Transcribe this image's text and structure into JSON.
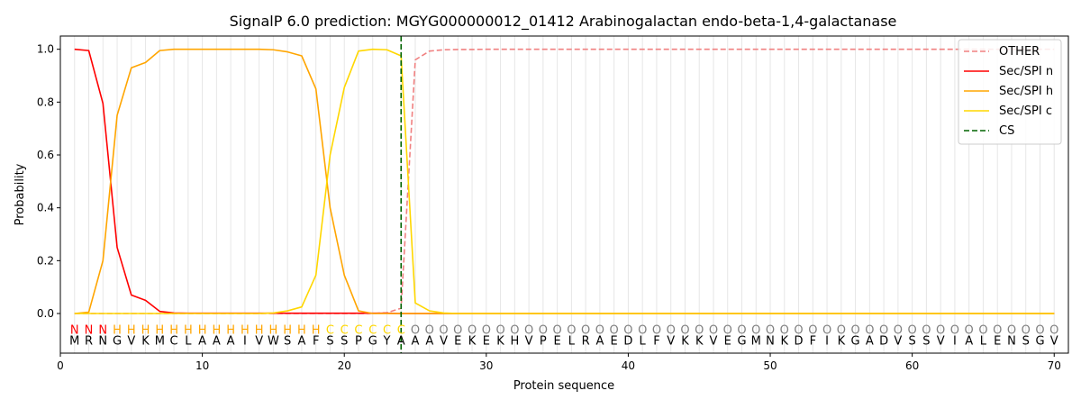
{
  "chart_data": {
    "type": "line",
    "title": "SignalP 6.0 prediction: MGYG000000012_01412 Arabinogalactan endo-beta-1,4-galactanase",
    "xlabel": "Protein sequence",
    "ylabel": "Probability",
    "xlim": [
      0,
      71
    ],
    "ylim": [
      -0.15,
      1.05
    ],
    "x_ticks": [
      0,
      10,
      20,
      30,
      40,
      50,
      60,
      70
    ],
    "y_ticks": [
      0.0,
      0.2,
      0.4,
      0.6,
      0.8,
      1.0
    ],
    "x_tick_labels": [
      "0",
      "10",
      "20",
      "30",
      "40",
      "50",
      "60",
      "70"
    ],
    "y_tick_labels": [
      "0.0",
      "0.2",
      "0.4",
      "0.6",
      "0.8",
      "1.0"
    ],
    "grid": "vertical lines at each residue",
    "legend_position": "top-right",
    "sequence": [
      "M",
      "R",
      "N",
      "G",
      "V",
      "K",
      "M",
      "C",
      "L",
      "A",
      "A",
      "A",
      "I",
      "V",
      "W",
      "S",
      "A",
      "F",
      "S",
      "S",
      "P",
      "G",
      "Y",
      "A",
      "A",
      "A",
      "V",
      "E",
      "K",
      "E",
      "K",
      "H",
      "V",
      "P",
      "E",
      "L",
      "R",
      "A",
      "E",
      "D",
      "L",
      "F",
      "V",
      "K",
      "K",
      "V",
      "E",
      "G",
      "M",
      "N",
      "K",
      "D",
      "F",
      "I",
      "K",
      "G",
      "A",
      "D",
      "V",
      "S",
      "S",
      "V",
      "I",
      "A",
      "L",
      "E",
      "N",
      "S",
      "G",
      "V"
    ],
    "labels": [
      "N",
      "N",
      "N",
      "H",
      "H",
      "H",
      "H",
      "H",
      "H",
      "H",
      "H",
      "H",
      "H",
      "H",
      "H",
      "H",
      "H",
      "H",
      "C",
      "C",
      "C",
      "C",
      "C",
      "C",
      "O",
      "O",
      "O",
      "O",
      "O",
      "O",
      "O",
      "O",
      "O",
      "O",
      "O",
      "O",
      "O",
      "O",
      "O",
      "O",
      "O",
      "O",
      "O",
      "O",
      "O",
      "O",
      "O",
      "O",
      "O",
      "O",
      "O",
      "O",
      "O",
      "O",
      "O",
      "O",
      "O",
      "O",
      "O",
      "O",
      "O",
      "O",
      "O",
      "O",
      "O",
      "O",
      "O",
      "O",
      "O",
      "O"
    ],
    "label_colors": {
      "N": "#ff0000",
      "H": "#ffa500",
      "C": "#ffd700",
      "O": "#808080"
    },
    "cleavage_site": 24,
    "series": [
      {
        "name": "OTHER",
        "color": "#f08080",
        "dash": true,
        "values": [
          0.0,
          0.0,
          0.0,
          0.0,
          0.0,
          0.0,
          0.0,
          0.0,
          0.0,
          0.0,
          0.0,
          0.0,
          0.0,
          0.0,
          0.0,
          0.0,
          0.0,
          0.0,
          0.0,
          0.0,
          0.0,
          0.0,
          0.003,
          0.02,
          0.96,
          0.993,
          0.998,
          0.999,
          0.999,
          1.0,
          1.0,
          1.0,
          1.0,
          1.0,
          1.0,
          1.0,
          1.0,
          1.0,
          1.0,
          1.0,
          1.0,
          1.0,
          1.0,
          1.0,
          1.0,
          1.0,
          1.0,
          1.0,
          1.0,
          1.0,
          1.0,
          1.0,
          1.0,
          1.0,
          1.0,
          1.0,
          1.0,
          1.0,
          1.0,
          1.0,
          1.0,
          1.0,
          1.0,
          1.0,
          1.0,
          1.0,
          1.0,
          1.0,
          1.0,
          1.0
        ]
      },
      {
        "name": "Sec/SPI n",
        "color": "#ff0000",
        "dash": false,
        "values": [
          1.0,
          0.995,
          0.795,
          0.25,
          0.07,
          0.05,
          0.008,
          0.002,
          0.001,
          0.001,
          0.001,
          0.001,
          0.001,
          0.001,
          0.001,
          0.001,
          0.001,
          0.001,
          0.001,
          0.001,
          0.001,
          0.001,
          0.001,
          0.0,
          0.0,
          0.0,
          0.0,
          0.0,
          0.0,
          0.0,
          0.0,
          0.0,
          0.0,
          0.0,
          0.0,
          0.0,
          0.0,
          0.0,
          0.0,
          0.0,
          0.0,
          0.0,
          0.0,
          0.0,
          0.0,
          0.0,
          0.0,
          0.0,
          0.0,
          0.0,
          0.0,
          0.0,
          0.0,
          0.0,
          0.0,
          0.0,
          0.0,
          0.0,
          0.0,
          0.0,
          0.0,
          0.0,
          0.0,
          0.0,
          0.0,
          0.0,
          0.0,
          0.0,
          0.0,
          0.0
        ]
      },
      {
        "name": "Sec/SPI h",
        "color": "#ffa500",
        "dash": false,
        "values": [
          0.0,
          0.005,
          0.2,
          0.75,
          0.93,
          0.95,
          0.995,
          1.0,
          1.0,
          1.0,
          1.0,
          1.0,
          1.0,
          1.0,
          0.998,
          0.99,
          0.975,
          0.85,
          0.4,
          0.145,
          0.01,
          0.0,
          0.0,
          0.0,
          0.0,
          0.0,
          0.0,
          0.0,
          0.0,
          0.0,
          0.0,
          0.0,
          0.0,
          0.0,
          0.0,
          0.0,
          0.0,
          0.0,
          0.0,
          0.0,
          0.0,
          0.0,
          0.0,
          0.0,
          0.0,
          0.0,
          0.0,
          0.0,
          0.0,
          0.0,
          0.0,
          0.0,
          0.0,
          0.0,
          0.0,
          0.0,
          0.0,
          0.0,
          0.0,
          0.0,
          0.0,
          0.0,
          0.0,
          0.0,
          0.0,
          0.0,
          0.0,
          0.0,
          0.0,
          0.0
        ]
      },
      {
        "name": "Sec/SPI c",
        "color": "#ffd700",
        "dash": false,
        "values": [
          0.0,
          0.0,
          0.0,
          0.0,
          0.0,
          0.0,
          0.0,
          0.0,
          0.0,
          0.0,
          0.0,
          0.0,
          0.0,
          0.0,
          0.002,
          0.01,
          0.025,
          0.145,
          0.6,
          0.855,
          0.993,
          1.0,
          0.998,
          0.975,
          0.04,
          0.01,
          0.002,
          0.0,
          0.0,
          0.0,
          0.0,
          0.0,
          0.0,
          0.0,
          0.0,
          0.0,
          0.0,
          0.0,
          0.0,
          0.0,
          0.0,
          0.0,
          0.0,
          0.0,
          0.0,
          0.0,
          0.0,
          0.0,
          0.0,
          0.0,
          0.0,
          0.0,
          0.0,
          0.0,
          0.0,
          0.0,
          0.0,
          0.0,
          0.0,
          0.0,
          0.0,
          0.0,
          0.0,
          0.0,
          0.0,
          0.0,
          0.0,
          0.0,
          0.0,
          0.0
        ]
      }
    ],
    "legend": [
      {
        "name": "OTHER",
        "color": "#f08080",
        "dash": true
      },
      {
        "name": "Sec/SPI n",
        "color": "#ff0000",
        "dash": false
      },
      {
        "name": "Sec/SPI h",
        "color": "#ffa500",
        "dash": false
      },
      {
        "name": "Sec/SPI c",
        "color": "#ffd700",
        "dash": false
      },
      {
        "name": "CS",
        "color": "#006400",
        "dash": true
      }
    ]
  }
}
